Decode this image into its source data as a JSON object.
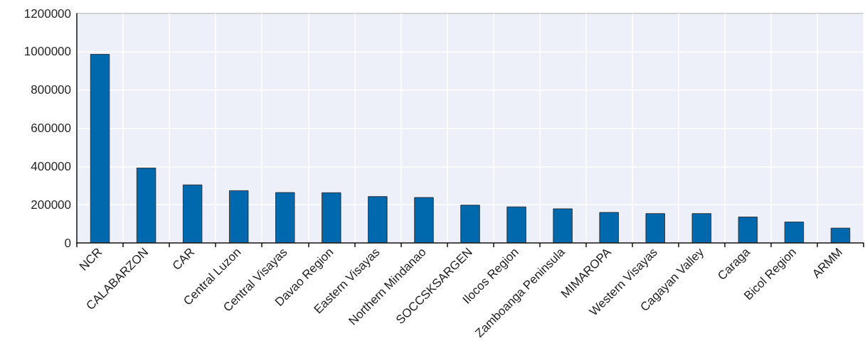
{
  "chart_data": {
    "type": "bar",
    "categories": [
      "NCR",
      "CALABARZON",
      "CAR",
      "Central Luzon",
      "Central Visayas",
      "Davao Region",
      "Eastern Visayas",
      "Northern Mindanao",
      "SOCCSKSARGEN",
      "Ilocos Region",
      "Zamboanga Peninsula",
      "MIMAROPA",
      "Western Visayas",
      "Cagayan Valley",
      "Caraga",
      "Bicol Region",
      "ARMM"
    ],
    "values": [
      988000,
      393000,
      305000,
      275000,
      265000,
      264000,
      244000,
      239000,
      199000,
      190000,
      180000,
      161000,
      155000,
      155000,
      137000,
      111000,
      79000
    ],
    "color": "#0069ae",
    "ylim": [
      0,
      1200000
    ],
    "yticks": [
      0,
      200000,
      400000,
      600000,
      800000,
      1000000,
      1200000
    ],
    "grid": true
  }
}
